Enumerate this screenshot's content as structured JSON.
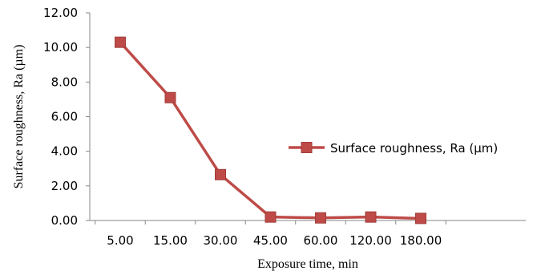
{
  "chart_data": {
    "type": "line",
    "categories": [
      "5.00",
      "15.00",
      "30.00",
      "45.00",
      "60.00",
      "120.00",
      "180.00"
    ],
    "series": [
      {
        "name": "Surface roughness, Ra (µm)",
        "values": [
          10.3,
          7.1,
          2.65,
          0.2,
          0.15,
          0.2,
          0.12
        ],
        "color": "#be4b48",
        "marker": "square"
      }
    ],
    "xlabel": "Exposure time, min",
    "ylabel": "Surface roughness, Ra (µm)",
    "ylim": [
      0,
      12
    ],
    "yticks": [
      "0.00",
      "2.00",
      "4.00",
      "6.00",
      "8.00",
      "10.00",
      "12.00"
    ],
    "grid": false,
    "legend_position": "right"
  }
}
